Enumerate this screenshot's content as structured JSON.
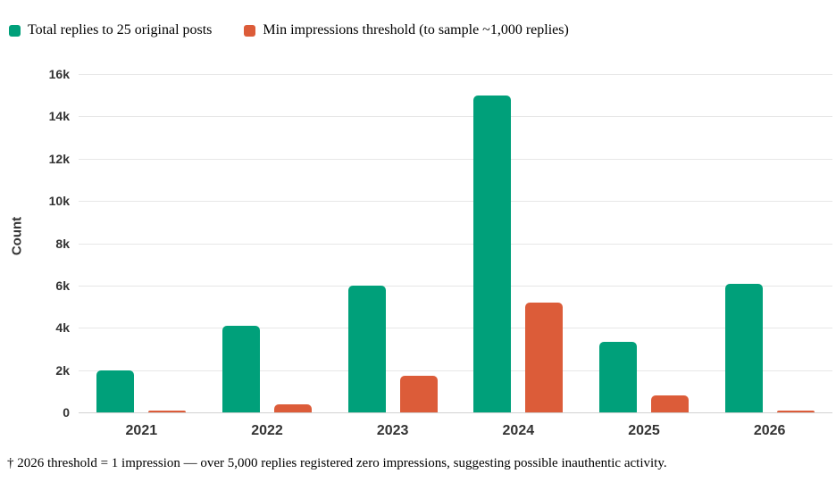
{
  "legend": {
    "items": [
      {
        "label": "Total replies to 25 original posts",
        "color": "#00A07A"
      },
      {
        "label": "Min impressions threshold (to sample ~1,000 replies)",
        "color": "#DC5C39"
      }
    ]
  },
  "chart_data": {
    "type": "bar",
    "title": "",
    "xlabel": "",
    "ylabel": "Count",
    "categories": [
      "2021",
      "2022",
      "2023",
      "2024",
      "2025",
      "2026"
    ],
    "series": [
      {
        "name": "Total replies to 25 original posts",
        "color": "#00A07A",
        "values": [
          2000,
          4100,
          6000,
          15000,
          3350,
          6100
        ]
      },
      {
        "name": "Min impressions threshold (to sample ~1,000 replies)",
        "color": "#DC5C39",
        "values": [
          100,
          400,
          1750,
          5200,
          800,
          1
        ]
      }
    ],
    "ylim": [
      0,
      16000
    ],
    "yticks": [
      {
        "value": 0,
        "label": "0"
      },
      {
        "value": 2000,
        "label": "2k"
      },
      {
        "value": 4000,
        "label": "4k"
      },
      {
        "value": 6000,
        "label": "6k"
      },
      {
        "value": 8000,
        "label": "8k"
      },
      {
        "value": 10000,
        "label": "10k"
      },
      {
        "value": 12000,
        "label": "12k"
      },
      {
        "value": 14000,
        "label": "14k"
      },
      {
        "value": 16000,
        "label": "16k"
      }
    ],
    "grid": true,
    "legend_position": "top-left"
  },
  "footnote": "† 2026 threshold = 1 impression — over 5,000 replies registered zero impressions, suggesting possible inauthentic activity."
}
